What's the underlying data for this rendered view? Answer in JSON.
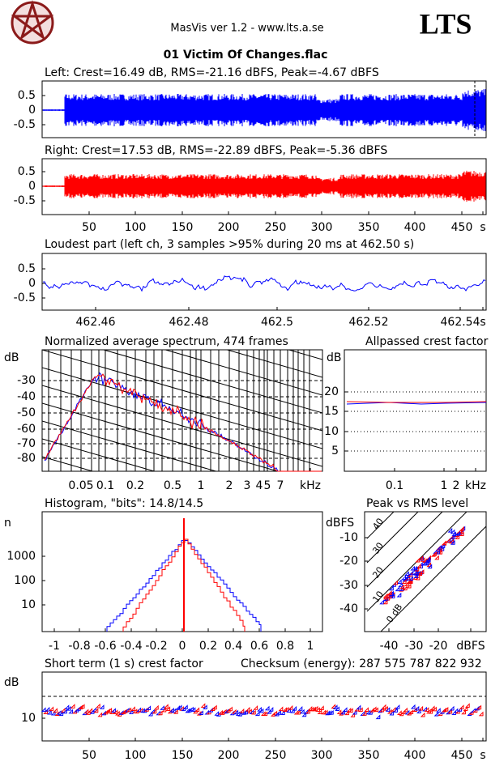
{
  "header": {
    "app": "MasVis ver 1.2 - www.lts.a.se",
    "brand": "LTS",
    "file": "01 Victim Of Changes.flac"
  },
  "panels": [
    {
      "title": "Left: Crest=16.49 dB, RMS=-21.16 dBFS, Peak=-4.67 dBFS",
      "yticks": [
        "0.5",
        "0",
        "-0.5"
      ]
    },
    {
      "title": "Right: Crest=17.53 dB, RMS=-22.89 dBFS, Peak=-5.36 dBFS",
      "yticks": [
        "0.5",
        "0",
        "-0.5"
      ],
      "xticks": [
        "50",
        "100",
        "150",
        "200",
        "250",
        "300",
        "350",
        "400",
        "450",
        "s"
      ]
    },
    {
      "title": "Loudest part (left  ch, 3 samples >95% during 20 ms at 462.50 s)",
      "yticks": [
        "0.5",
        "0",
        "-0.5"
      ],
      "xticks": [
        "462.46",
        "462.48",
        "462.5",
        "462.52",
        "462.54",
        "s"
      ]
    },
    {
      "title": "Normalized average spectrum, 474 frames",
      "yunit": "dB",
      "yticks": [
        "-30",
        "-40",
        "-50",
        "-60",
        "-70",
        "-80"
      ],
      "xticks": [
        "0.05",
        "0.1",
        "0.2",
        "0.5",
        "1",
        "2",
        "3",
        "4",
        "5",
        "7",
        "kHz"
      ]
    },
    {
      "title": "Allpassed crest factor",
      "yunit": "dB",
      "yticks": [
        "20",
        "15",
        "10",
        "5"
      ],
      "xticks": [
        "0.1",
        "1",
        "2",
        "kHz"
      ]
    },
    {
      "title": "Histogram, \"bits\": 14.8/14.5",
      "yunit": "n",
      "yticks": [
        "1000",
        "100",
        "10"
      ],
      "xticks": [
        "-1",
        "-0.8",
        "-0.6",
        "-0.4",
        "-0.2",
        "0",
        "0.2",
        "0.4",
        "0.6",
        "0.8",
        "1"
      ]
    },
    {
      "title": "Peak vs RMS level",
      "yunit": "dBFS",
      "yticks": [
        "-10",
        "-20",
        "-30",
        "-40"
      ],
      "xticks": [
        "-40",
        "-30",
        "-20",
        "dBFS"
      ],
      "lines": [
        "40",
        "30",
        "20",
        "10",
        "0 dB"
      ]
    },
    {
      "title": "Short term (1 s) crest factor",
      "checksum": "Checksum (energy):  287 575 787 822 932",
      "yunit": "dB",
      "yticks": [
        "10"
      ],
      "xticks": [
        "50",
        "100",
        "150",
        "200",
        "250",
        "300",
        "350",
        "400",
        "450",
        "s"
      ]
    }
  ]
}
